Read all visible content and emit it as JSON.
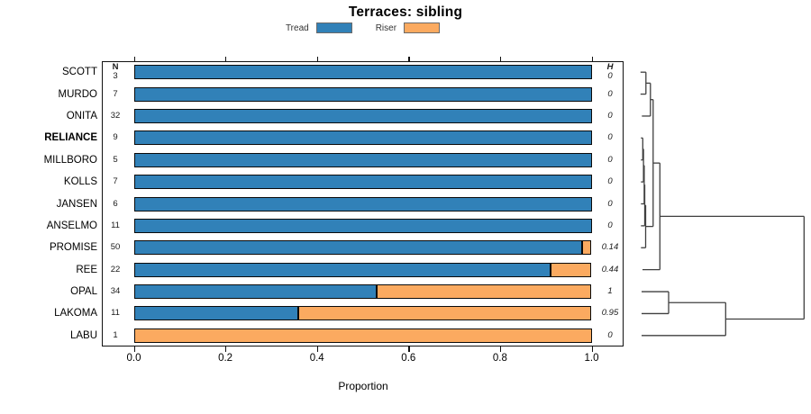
{
  "title": "Terraces: sibling",
  "legend": {
    "items": [
      {
        "label": "Tread",
        "color": "#3181b8"
      },
      {
        "label": "Riser",
        "color": "#fbaa60"
      }
    ]
  },
  "columns": {
    "n_header": "N",
    "h_header": "H"
  },
  "x_axis": {
    "label": "Proportion",
    "ticks": [
      "0.0",
      "0.2",
      "0.4",
      "0.6",
      "0.8",
      "1.0"
    ]
  },
  "chart_data": {
    "type": "bar",
    "stacked": true,
    "orientation": "horizontal",
    "title": "Terraces: sibling",
    "xlabel": "Proportion",
    "xlim": [
      0,
      1
    ],
    "series_names": [
      "Tread",
      "Riser"
    ],
    "colors": {
      "tread": "#3181b8",
      "riser": "#fbaa60"
    },
    "rows": [
      {
        "label": "SCOTT",
        "n": 3,
        "tread": 1.0,
        "riser": 0.0,
        "h": "0",
        "bold": false
      },
      {
        "label": "MURDO",
        "n": 7,
        "tread": 1.0,
        "riser": 0.0,
        "h": "0",
        "bold": false
      },
      {
        "label": "ONITA",
        "n": 32,
        "tread": 1.0,
        "riser": 0.0,
        "h": "0",
        "bold": false
      },
      {
        "label": "RELIANCE",
        "n": 9,
        "tread": 1.0,
        "riser": 0.0,
        "h": "0",
        "bold": true
      },
      {
        "label": "MILLBORO",
        "n": 5,
        "tread": 1.0,
        "riser": 0.0,
        "h": "0",
        "bold": false
      },
      {
        "label": "KOLLS",
        "n": 7,
        "tread": 1.0,
        "riser": 0.0,
        "h": "0",
        "bold": false
      },
      {
        "label": "JANSEN",
        "n": 6,
        "tread": 1.0,
        "riser": 0.0,
        "h": "0",
        "bold": false
      },
      {
        "label": "ANSELMO",
        "n": 11,
        "tread": 1.0,
        "riser": 0.0,
        "h": "0",
        "bold": false
      },
      {
        "label": "PROMISE",
        "n": 50,
        "tread": 0.98,
        "riser": 0.02,
        "h": "0.14",
        "bold": false
      },
      {
        "label": "REE",
        "n": 22,
        "tread": 0.91,
        "riser": 0.09,
        "h": "0.44",
        "bold": false
      },
      {
        "label": "OPAL",
        "n": 34,
        "tread": 0.53,
        "riser": 0.47,
        "h": "1",
        "bold": false
      },
      {
        "label": "LAKOMA",
        "n": 11,
        "tread": 0.36,
        "riser": 0.64,
        "h": "0.95",
        "bold": false
      },
      {
        "label": "LABU",
        "n": 1,
        "tread": 0.0,
        "riser": 1.0,
        "h": "0",
        "bold": false
      }
    ],
    "dendrogram": {
      "note": "x = distance in px right of plot box edge; y = leaf row position (1-13)",
      "segments": [
        [
          18.8,
          1,
          24.8,
          1
        ],
        [
          18.8,
          2,
          24.8,
          2
        ],
        [
          24.8,
          1,
          24.8,
          2
        ],
        [
          24.8,
          1.5,
          29.8,
          1.5
        ],
        [
          20.3,
          3,
          29.8,
          3
        ],
        [
          29.8,
          1.5,
          29.8,
          3
        ],
        [
          29.8,
          2.25,
          32.8,
          2.25
        ],
        [
          19.3,
          4,
          21.3,
          4
        ],
        [
          19.3,
          5,
          21.3,
          5
        ],
        [
          21.3,
          4,
          21.3,
          5
        ],
        [
          21.3,
          4.5,
          22.1,
          4.5
        ],
        [
          19.3,
          6,
          22.1,
          6
        ],
        [
          22.1,
          4.5,
          22.1,
          6
        ],
        [
          22.1,
          5.25,
          22.9,
          5.25
        ],
        [
          19.3,
          7,
          22.9,
          7
        ],
        [
          22.9,
          5.25,
          22.9,
          7
        ],
        [
          22.9,
          6.125,
          23.5,
          6.125
        ],
        [
          19.3,
          8,
          23.5,
          8
        ],
        [
          23.5,
          6.125,
          23.5,
          8
        ],
        [
          23.5,
          7.0625,
          24.5,
          7.0625
        ],
        [
          19.3,
          9,
          24.5,
          9
        ],
        [
          24.5,
          7.0625,
          24.5,
          9
        ],
        [
          24.5,
          8.03,
          32.8,
          8.03
        ],
        [
          32.8,
          2.25,
          32.8,
          8.03
        ],
        [
          32.8,
          5.14,
          40.3,
          5.14
        ],
        [
          21,
          10,
          40.3,
          10
        ],
        [
          40.3,
          5.14,
          40.3,
          10
        ],
        [
          40.3,
          7.57,
          200.3,
          7.57
        ],
        [
          20,
          11,
          50,
          11
        ],
        [
          20,
          12,
          50,
          12
        ],
        [
          50,
          11,
          50,
          12
        ],
        [
          50,
          11.5,
          113.3,
          11.5
        ],
        [
          20,
          13,
          113.3,
          13
        ],
        [
          113.3,
          11.5,
          113.3,
          13
        ],
        [
          113.3,
          12.25,
          200.3,
          12.25
        ],
        [
          200.3,
          7.57,
          200.3,
          12.25
        ]
      ]
    }
  }
}
